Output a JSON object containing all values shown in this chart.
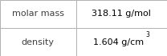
{
  "rows": [
    {
      "label": "molar mass",
      "value": "318.11 g/mol",
      "has_superscript": false,
      "base": "",
      "superscript": ""
    },
    {
      "label": "density",
      "value": "1.604 g/cm",
      "has_superscript": true,
      "base": "1.604 g/cm",
      "superscript": "3"
    }
  ],
  "bg_color": "#ffffff",
  "border_color": "#b0b0b0",
  "label_color": "#404040",
  "value_color": "#000000",
  "font_size": 8.0,
  "sup_font_size": 5.5,
  "col_split": 0.455,
  "figsize": [
    2.08,
    0.7
  ],
  "dpi": 100,
  "lw": 0.7
}
